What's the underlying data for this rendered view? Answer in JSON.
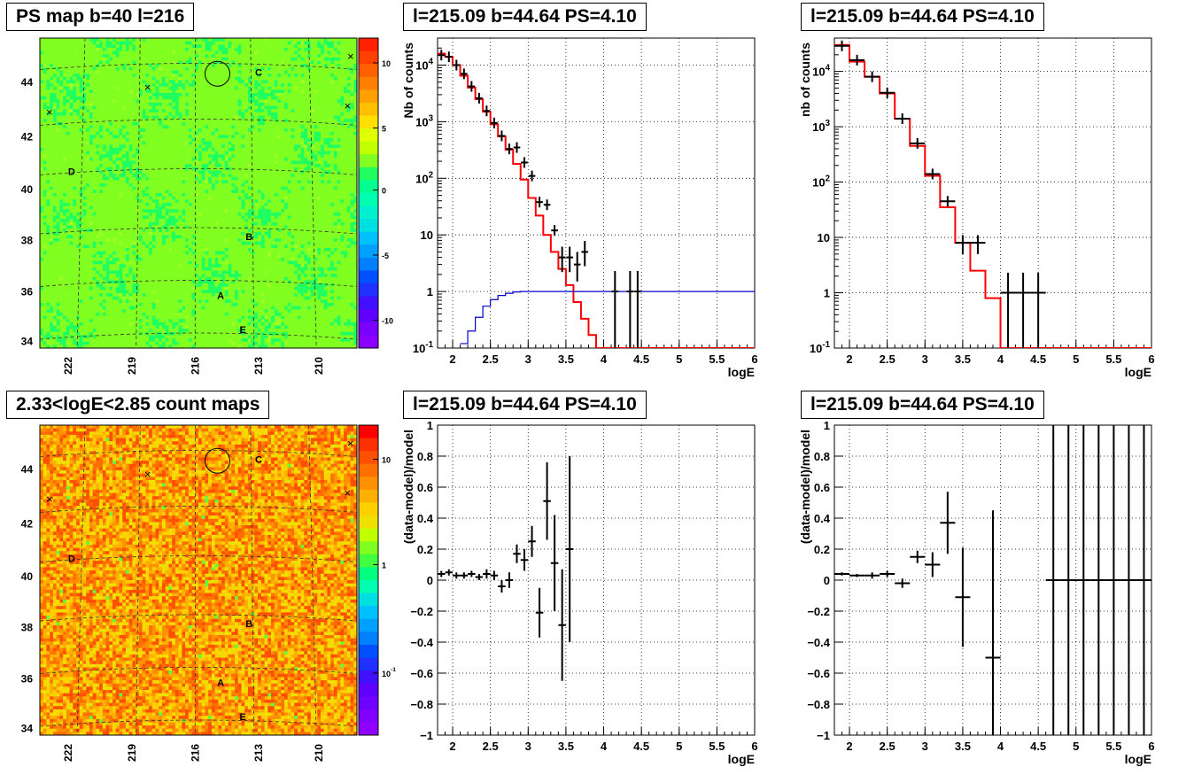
{
  "titles": {
    "ps_map": "PS map b=40 l=216",
    "count_map": "2.33<logE<2.85 count maps",
    "spec1": "l=215.09 b=44.64 PS=4.10",
    "spec2": "l=215.09 b=44.64 PS=4.10",
    "res1": "l=215.09 b=44.64 PS=4.10",
    "res2": "l=215.09 b=44.64 PS=4.10"
  },
  "colors": {
    "model": "#ff0000",
    "exposure": "#0000cc",
    "data": "#000000"
  },
  "chart_data": [
    {
      "id": "ps_map",
      "type": "heatmap",
      "title": "PS map b=40 l=216",
      "y_ticks": [
        "34",
        "36",
        "38",
        "40",
        "42",
        "44"
      ],
      "x_ticks": [
        "222",
        "219",
        "216",
        "213",
        "210"
      ],
      "colorbar_ticks": [
        "10",
        "5",
        "0",
        "-5",
        "-10"
      ],
      "zlim": [
        -12,
        12
      ],
      "source_labels": [
        "A",
        "B",
        "C",
        "D",
        "E"
      ],
      "background_value": 0.5,
      "grid": true
    },
    {
      "id": "count_map",
      "type": "heatmap",
      "title": "2.33<logE<2.85 count maps",
      "y_ticks": [
        "34",
        "36",
        "38",
        "40",
        "42",
        "44"
      ],
      "x_ticks": [
        "222",
        "219",
        "216",
        "213",
        "210"
      ],
      "colorbar_ticks": [
        "10",
        "1",
        "10^-1"
      ],
      "zscale": "log",
      "source_labels": [
        "A",
        "B",
        "C",
        "D",
        "E"
      ],
      "grid": true
    },
    {
      "id": "spec1",
      "type": "line",
      "title": "l=215.09 b=44.64 PS=4.10",
      "xlabel": "logE",
      "ylabel": "Nb of counts",
      "xlim": [
        1.8,
        6
      ],
      "ylim": [
        0.1,
        30000
      ],
      "yscale": "log",
      "x_ticks": [
        2,
        2.5,
        3,
        3.5,
        4,
        4.5,
        5,
        5.5,
        6
      ],
      "y_ticks": [
        "10^-1",
        "1",
        "10",
        "10^2",
        "10^3",
        "10^4"
      ],
      "grid": true,
      "series": [
        {
          "name": "model",
          "style": "step",
          "edges": [
            1.8,
            1.9,
            2.0,
            2.1,
            2.2,
            2.3,
            2.4,
            2.5,
            2.6,
            2.7,
            2.8,
            2.9,
            3.0,
            3.1,
            3.2,
            3.3,
            3.4,
            3.5,
            3.6,
            3.7,
            3.8,
            3.9,
            4.0,
            4.1,
            4.2,
            4.3,
            4.4,
            4.5,
            4.6,
            4.7,
            4.8,
            4.9,
            5.0,
            5.1,
            5.2,
            5.3,
            5.4,
            5.5,
            5.6,
            5.7,
            5.8,
            5.9,
            6.0
          ],
          "values": [
            16000,
            14000,
            10000,
            6500,
            4000,
            2500,
            1500,
            900,
            550,
            320,
            180,
            95,
            45,
            22,
            10,
            5,
            2.5,
            1.3,
            0.65,
            0.33,
            0.17,
            0.1,
            0.1,
            0.1,
            0.1,
            0.1,
            0.1,
            0.1,
            0.1,
            0.1,
            0.1,
            0.1,
            0.1,
            0.1,
            0.1,
            0.1,
            0.1,
            0.1,
            0.1,
            0.1,
            0.1,
            0.1
          ]
        },
        {
          "name": "exposure",
          "style": "step",
          "edges": [
            2.1,
            2.2,
            2.3,
            2.4,
            2.5,
            2.6,
            2.7,
            2.8,
            2.9,
            3.0,
            3.1,
            6.0
          ],
          "values": [
            0.12,
            0.2,
            0.35,
            0.55,
            0.72,
            0.85,
            0.93,
            0.98,
            1.0,
            1.0,
            1.0
          ]
        },
        {
          "name": "data",
          "style": "errorbar",
          "x": [
            1.85,
            1.95,
            2.05,
            2.15,
            2.25,
            2.35,
            2.45,
            2.55,
            2.65,
            2.75,
            2.85,
            2.95,
            3.05,
            3.15,
            3.25,
            3.35,
            3.45,
            3.55,
            3.65,
            3.75,
            4.15,
            4.35,
            4.45
          ],
          "y": [
            15000,
            14000,
            10000,
            7000,
            4200,
            2600,
            1550,
            950,
            560,
            330,
            350,
            190,
            110,
            38,
            34,
            12,
            4,
            4,
            3,
            5,
            1,
            1,
            1
          ],
          "yerr_lo": [
            0,
            0,
            0,
            0,
            0,
            0,
            0,
            0,
            0,
            0,
            0,
            0,
            0,
            0,
            0,
            0,
            1.8,
            1.8,
            1.5,
            2.2,
            0.9,
            0.9,
            0.9
          ],
          "yerr_hi": [
            0,
            0,
            0,
            0,
            0,
            0,
            0,
            0,
            0,
            0,
            0,
            0,
            0,
            0,
            0,
            0,
            2.2,
            2.2,
            2,
            2.8,
            1.3,
            1.3,
            1.3
          ]
        }
      ]
    },
    {
      "id": "spec2",
      "type": "line",
      "title": "l=215.09 b=44.64 PS=4.10",
      "xlabel": "logE",
      "ylabel": "nb of counts",
      "xlim": [
        1.8,
        6
      ],
      "ylim": [
        0.1,
        40000
      ],
      "yscale": "log",
      "x_ticks": [
        2,
        2.5,
        3,
        3.5,
        4,
        4.5,
        5,
        5.5,
        6
      ],
      "y_ticks": [
        "10^-1",
        "1",
        "10",
        "10^2",
        "10^3",
        "10^4"
      ],
      "grid": true,
      "series": [
        {
          "name": "model",
          "style": "step",
          "edges": [
            1.8,
            2.0,
            2.2,
            2.4,
            2.6,
            2.8,
            3.0,
            3.2,
            3.4,
            3.6,
            3.8,
            4.0,
            4.2,
            4.4,
            4.6,
            4.8,
            5.0,
            5.2,
            5.4,
            5.6,
            5.8,
            6.0
          ],
          "values": [
            30000,
            15000,
            8000,
            4000,
            1400,
            450,
            130,
            35,
            8,
            2.5,
            0.8,
            0.1,
            0.1,
            0.1,
            0.1,
            0.1,
            0.1,
            0.1,
            0.1,
            0.1,
            0.1
          ]
        },
        {
          "name": "data",
          "style": "errorbar",
          "x": [
            1.9,
            2.1,
            2.3,
            2.5,
            2.7,
            2.9,
            3.1,
            3.3,
            3.5,
            3.7,
            4.1,
            4.3,
            4.5
          ],
          "y": [
            29000,
            16000,
            8000,
            4100,
            1400,
            500,
            140,
            45,
            8,
            8,
            1,
            1,
            1
          ],
          "xerr": [
            0.1,
            0.1,
            0.1,
            0.1,
            0.1,
            0.1,
            0.1,
            0.1,
            0.1,
            0.1,
            0.1,
            0.1,
            0.1
          ],
          "yerr_lo": [
            0,
            0,
            0,
            0,
            0,
            0,
            0,
            0,
            3,
            3,
            0.9,
            0.9,
            0.9
          ],
          "yerr_hi": [
            0,
            0,
            0,
            0,
            0,
            0,
            0,
            0,
            3,
            3,
            1.3,
            1.3,
            1.3
          ]
        }
      ]
    },
    {
      "id": "res1",
      "type": "scatter",
      "title": "l=215.09 b=44.64 PS=4.10",
      "xlabel": "logE",
      "ylabel": "(data-model)/model",
      "xlim": [
        1.8,
        6
      ],
      "ylim": [
        -1,
        1
      ],
      "x_ticks": [
        2,
        2.5,
        3,
        3.5,
        4,
        4.5,
        5,
        5.5,
        6
      ],
      "y_ticks": [
        -1,
        -0.8,
        -0.6,
        -0.4,
        -0.2,
        0,
        0.2,
        0.4,
        0.6,
        0.8,
        1
      ],
      "grid": true,
      "series": [
        {
          "name": "data",
          "x": [
            1.85,
            1.95,
            2.05,
            2.15,
            2.25,
            2.35,
            2.45,
            2.55,
            2.65,
            2.75,
            2.85,
            2.95,
            3.05,
            3.15,
            3.25,
            3.35,
            3.45,
            3.55
          ],
          "y": [
            0.04,
            0.05,
            0.03,
            0.03,
            0.04,
            0.02,
            0.04,
            0.03,
            -0.04,
            0.0,
            0.17,
            0.13,
            0.25,
            -0.21,
            0.51,
            0.11,
            -0.29,
            0.2
          ],
          "yerr": [
            0.02,
            0.02,
            0.02,
            0.02,
            0.02,
            0.02,
            0.03,
            0.03,
            0.04,
            0.05,
            0.06,
            0.07,
            0.1,
            0.16,
            0.25,
            0.31,
            0.36,
            0.6
          ],
          "xerr": 0.05
        }
      ]
    },
    {
      "id": "res2",
      "type": "scatter",
      "title": "l=215.09 b=44.64 PS=4.10",
      "xlabel": "logE",
      "ylabel": "(data-model)/model",
      "xlim": [
        1.8,
        6
      ],
      "ylim": [
        -1,
        1
      ],
      "x_ticks": [
        2,
        2.5,
        3,
        3.5,
        4,
        4.5,
        5,
        5.5,
        6
      ],
      "y_ticks": [
        -1,
        -0.8,
        -0.6,
        -0.4,
        -0.2,
        0,
        0.2,
        0.4,
        0.6,
        0.8,
        1
      ],
      "grid": true,
      "series": [
        {
          "name": "data",
          "x": [
            1.9,
            2.1,
            2.3,
            2.5,
            2.7,
            2.9,
            3.1,
            3.3,
            3.5,
            3.9,
            4.7,
            4.9,
            5.1,
            5.3,
            5.5,
            5.7,
            5.9
          ],
          "y": [
            0.04,
            0.03,
            0.03,
            0.04,
            -0.02,
            0.15,
            0.1,
            0.37,
            -0.11,
            -0.5,
            0,
            0,
            0,
            0,
            0,
            0,
            0
          ],
          "yerr": [
            0.01,
            0.01,
            0.02,
            0.02,
            0.03,
            0.04,
            0.08,
            0.2,
            0.32,
            0.95,
            1.5,
            1.5,
            1.5,
            1.5,
            1.5,
            1.5,
            1.5
          ],
          "xerr": 0.1
        }
      ]
    }
  ]
}
